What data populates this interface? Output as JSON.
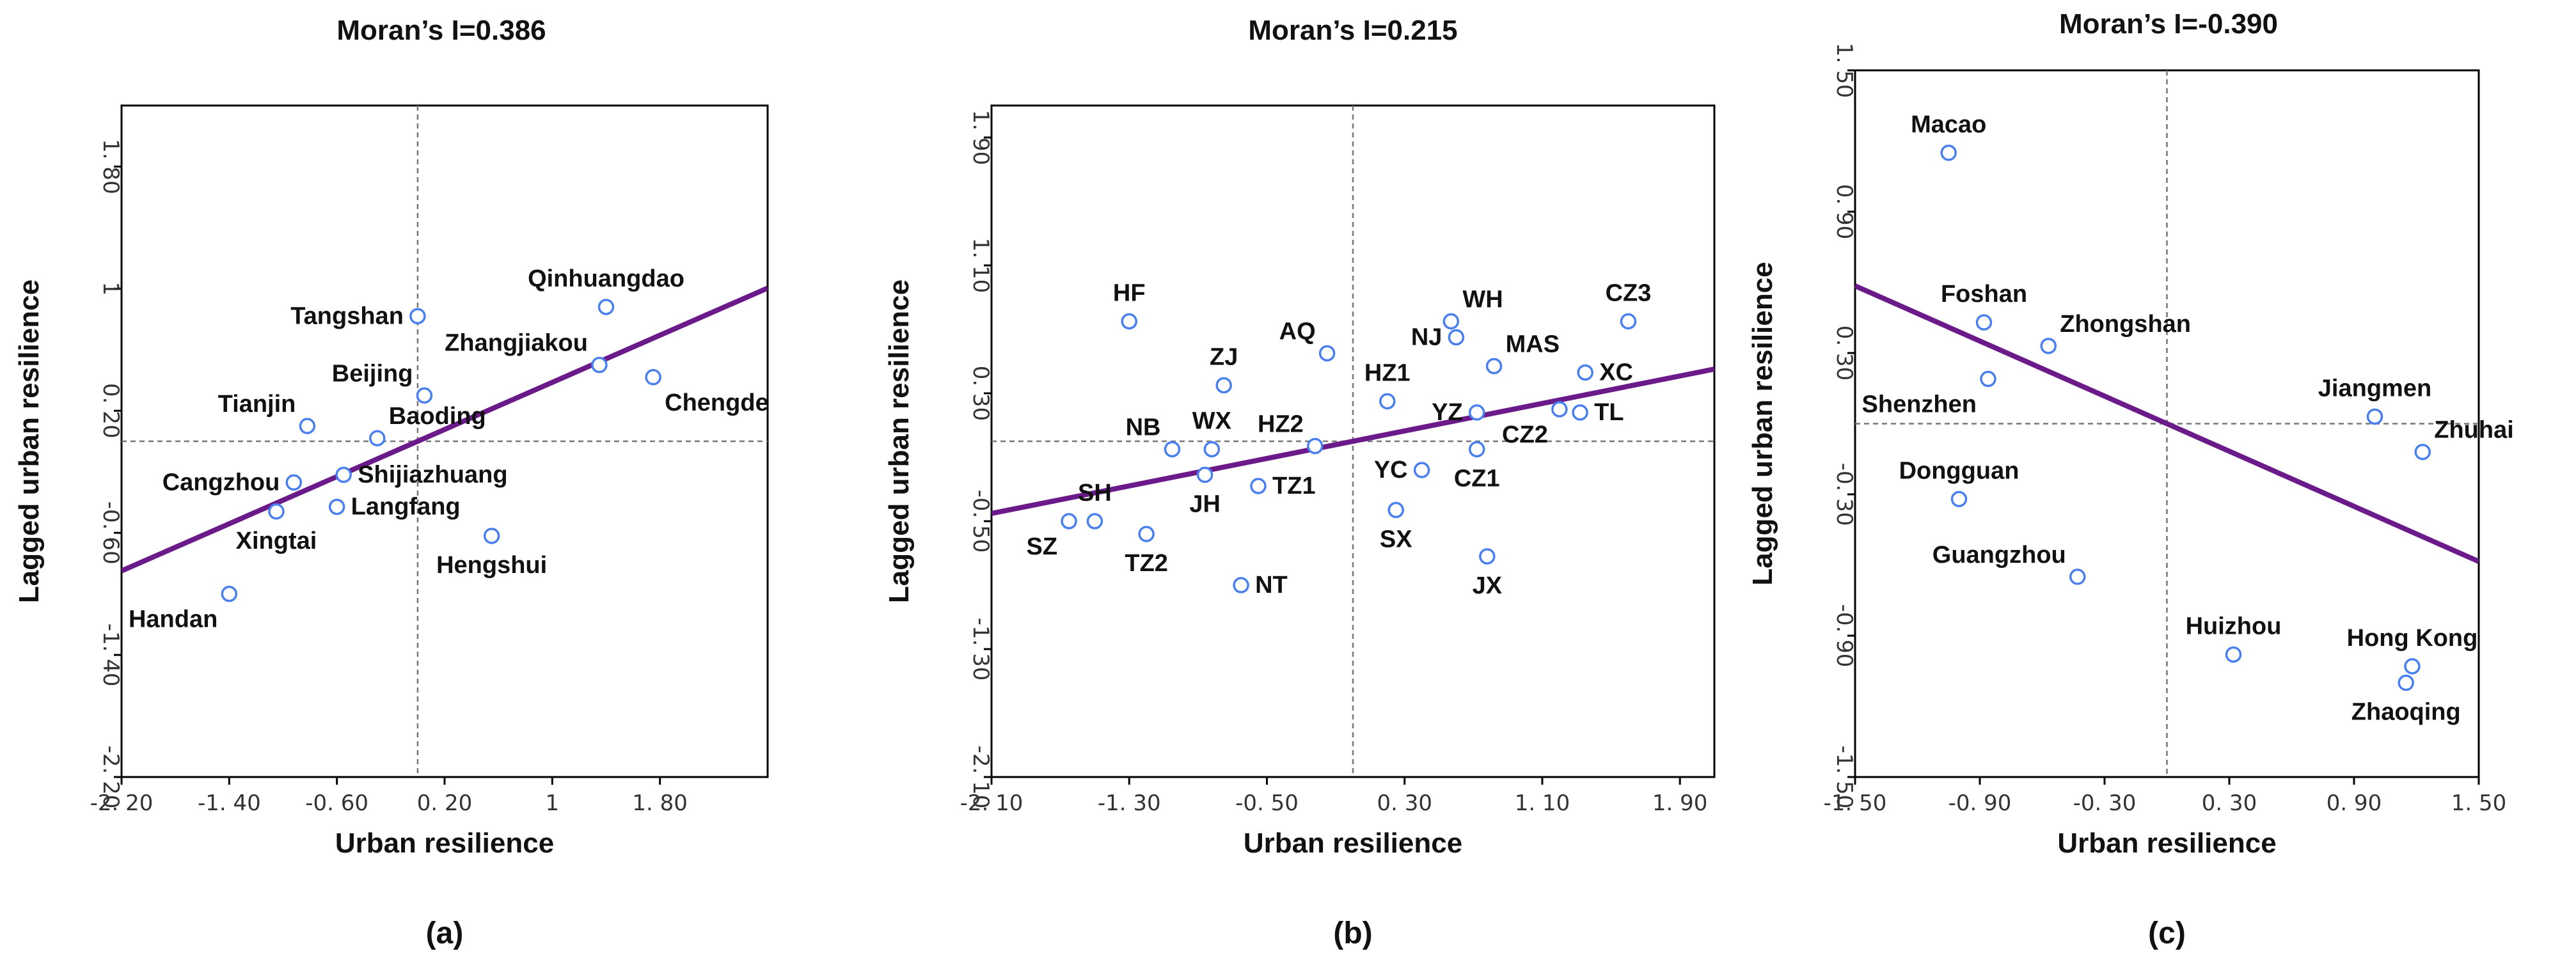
{
  "chart_data": [
    {
      "type": "scatter",
      "panel": "(a)",
      "title": "Moran’s I=0.386",
      "xlabel": "Urban resilience",
      "ylabel": "Lagged urban resilience",
      "xlim": [
        -2.2,
        2.6
      ],
      "ylim": [
        -2.2,
        2.2
      ],
      "xticks": [
        -2.2,
        -1.4,
        -0.6,
        0.2,
        1.0,
        1.8
      ],
      "xtick_labels": [
        "-2. 20",
        "-1. 40",
        "-0. 60",
        "0. 20",
        "1",
        "1. 80"
      ],
      "yticks": [
        -2.2,
        -1.4,
        -0.6,
        0.2,
        1.0,
        1.8
      ],
      "ytick_labels": [
        "-2. 20",
        "-1. 40",
        "-0. 60",
        "0. 20",
        "1",
        "1. 80"
      ],
      "quadrant_x": 0.0,
      "quadrant_y": 0.0,
      "fit_line": {
        "slope": 0.386,
        "intercept": 0.0
      },
      "points": [
        {
          "label": "Tangshan",
          "x": 0.0,
          "y": 0.82,
          "label_pos": "left"
        },
        {
          "label": "Qinhuangdao",
          "x": 1.4,
          "y": 0.88,
          "label_pos": "above"
        },
        {
          "label": "Zhangjiakou",
          "x": 1.35,
          "y": 0.5,
          "label_pos": "above-left"
        },
        {
          "label": "Chengde",
          "x": 1.75,
          "y": 0.42,
          "label_pos": "below-right"
        },
        {
          "label": "Beijing",
          "x": 0.05,
          "y": 0.3,
          "label_pos": "above-left"
        },
        {
          "label": "Tianjin",
          "x": -0.82,
          "y": 0.1,
          "label_pos": "above-left"
        },
        {
          "label": "Baoding",
          "x": -0.3,
          "y": 0.02,
          "label_pos": "above-right"
        },
        {
          "label": "Cangzhou",
          "x": -0.92,
          "y": -0.27,
          "label_pos": "left"
        },
        {
          "label": "Shijiazhuang",
          "x": -0.55,
          "y": -0.22,
          "label_pos": "right"
        },
        {
          "label": "Xingtai",
          "x": -1.05,
          "y": -0.46,
          "label_pos": "below"
        },
        {
          "label": "Langfang",
          "x": -0.6,
          "y": -0.43,
          "label_pos": "right"
        },
        {
          "label": "Hengshui",
          "x": 0.55,
          "y": -0.62,
          "label_pos": "below"
        },
        {
          "label": "Handan",
          "x": -1.4,
          "y": -1.0,
          "label_pos": "below-left"
        }
      ],
      "caption": "(a)"
    },
    {
      "type": "scatter",
      "panel": "(b)",
      "title": "Moran’s I=0.215",
      "xlabel": "Urban resilience",
      "ylabel": "Lagged urban resilience",
      "xlim": [
        -2.1,
        2.1
      ],
      "ylim": [
        -2.1,
        2.1
      ],
      "xticks": [
        -2.1,
        -1.3,
        -0.5,
        0.3,
        1.1,
        1.9
      ],
      "xtick_labels": [
        "-2. 10",
        "-1. 30",
        "-0. 50",
        "0. 30",
        "1. 10",
        "1. 90"
      ],
      "yticks": [
        -2.1,
        -1.3,
        -0.5,
        0.3,
        1.1,
        1.9
      ],
      "ytick_labels": [
        "-2. 10",
        "-1. 30",
        "-0. 50",
        "0. 30",
        "1. 10",
        "1. 90"
      ],
      "quadrant_x": 0.0,
      "quadrant_y": 0.0,
      "fit_line": {
        "slope": 0.215,
        "intercept": 0.0
      },
      "points": [
        {
          "label": "HF",
          "x": -1.3,
          "y": 0.75,
          "label_pos": "above"
        },
        {
          "label": "AQ",
          "x": -0.15,
          "y": 0.55,
          "label_pos": "above-left"
        },
        {
          "label": "WH",
          "x": 0.57,
          "y": 0.75,
          "label_pos": "above-right"
        },
        {
          "label": "NJ",
          "x": 0.6,
          "y": 0.65,
          "label_pos": "left"
        },
        {
          "label": "CZ3",
          "x": 1.6,
          "y": 0.75,
          "label_pos": "above"
        },
        {
          "label": "MAS",
          "x": 0.82,
          "y": 0.47,
          "label_pos": "above-right"
        },
        {
          "label": "ZJ",
          "x": -0.75,
          "y": 0.35,
          "label_pos": "above"
        },
        {
          "label": "HZ1",
          "x": 0.2,
          "y": 0.25,
          "label_pos": "above"
        },
        {
          "label": "XC",
          "x": 1.35,
          "y": 0.43,
          "label_pos": "right"
        },
        {
          "label": "YZ",
          "x": 0.72,
          "y": 0.18,
          "label_pos": "left"
        },
        {
          "label": "TL",
          "x": 1.32,
          "y": 0.18,
          "label_pos": "right"
        },
        {
          "label": "CZ2",
          "x": 1.2,
          "y": 0.2,
          "label_pos": "below-left"
        },
        {
          "label": "NB",
          "x": -1.05,
          "y": -0.05,
          "label_pos": "above-left"
        },
        {
          "label": "WX",
          "x": -0.82,
          "y": -0.05,
          "label_pos": "above"
        },
        {
          "label": "HZ2",
          "x": -0.22,
          "y": -0.03,
          "label_pos": "above-left"
        },
        {
          "label": "YC",
          "x": 0.4,
          "y": -0.18,
          "label_pos": "left"
        },
        {
          "label": "CZ1",
          "x": 0.72,
          "y": -0.05,
          "label_pos": "below"
        },
        {
          "label": "SH",
          "x": -1.5,
          "y": -0.5,
          "label_pos": "above"
        },
        {
          "label": "SZ",
          "x": -1.65,
          "y": -0.5,
          "label_pos": "below-left"
        },
        {
          "label": "JH",
          "x": -0.86,
          "y": -0.21,
          "label_pos": "below"
        },
        {
          "label": "TZ1",
          "x": -0.55,
          "y": -0.28,
          "label_pos": "right"
        },
        {
          "label": "TZ2",
          "x": -1.2,
          "y": -0.58,
          "label_pos": "below"
        },
        {
          "label": "SX",
          "x": 0.25,
          "y": -0.43,
          "label_pos": "below"
        },
        {
          "label": "JX",
          "x": 0.78,
          "y": -0.72,
          "label_pos": "below"
        },
        {
          "label": "NT",
          "x": -0.65,
          "y": -0.9,
          "label_pos": "right"
        }
      ],
      "caption": "(b)"
    },
    {
      "type": "scatter",
      "panel": "(c)",
      "title": "Moran’s I=-0.390",
      "xlabel": "Urban resilience",
      "ylabel": "Lagged urban resilience",
      "xlim": [
        -1.5,
        1.5
      ],
      "ylim": [
        -1.5,
        1.5
      ],
      "xticks": [
        -1.5,
        -0.9,
        -0.3,
        0.3,
        0.9,
        1.5
      ],
      "xtick_labels": [
        "-1. 50",
        "-0. 90",
        "-0. 30",
        "0. 30",
        "0. 90",
        "1. 50"
      ],
      "yticks": [
        -1.5,
        -0.9,
        -0.3,
        0.3,
        0.9,
        1.5
      ],
      "ytick_labels": [
        "-1. 50",
        "-0. 90",
        "-0. 30",
        "0. 30",
        "0. 90",
        "1. 50"
      ],
      "quadrant_x": 0.0,
      "quadrant_y": 0.0,
      "fit_line": {
        "slope": -0.39,
        "intercept": 0.0
      },
      "points": [
        {
          "label": "Macao",
          "x": -1.05,
          "y": 1.15,
          "label_pos": "above"
        },
        {
          "label": "Foshan",
          "x": -0.88,
          "y": 0.43,
          "label_pos": "above"
        },
        {
          "label": "Zhongshan",
          "x": -0.57,
          "y": 0.33,
          "label_pos": "above-right"
        },
        {
          "label": "Shenzhen",
          "x": -0.86,
          "y": 0.19,
          "label_pos": "below-left"
        },
        {
          "label": "Jiangmen",
          "x": 1.0,
          "y": 0.03,
          "label_pos": "above"
        },
        {
          "label": "Zhuhai",
          "x": 1.23,
          "y": -0.12,
          "label_pos": "above-right"
        },
        {
          "label": "Dongguan",
          "x": -1.0,
          "y": -0.32,
          "label_pos": "above"
        },
        {
          "label": "Guangzhou",
          "x": -0.43,
          "y": -0.65,
          "label_pos": "above-left"
        },
        {
          "label": "Huizhou",
          "x": 0.32,
          "y": -0.98,
          "label_pos": "above"
        },
        {
          "label": "Hong Kong",
          "x": 1.18,
          "y": -1.03,
          "label_pos": "above"
        },
        {
          "label": "Zhaoqing",
          "x": 1.15,
          "y": -1.1,
          "label_pos": "below"
        }
      ],
      "caption": "(c)"
    }
  ]
}
